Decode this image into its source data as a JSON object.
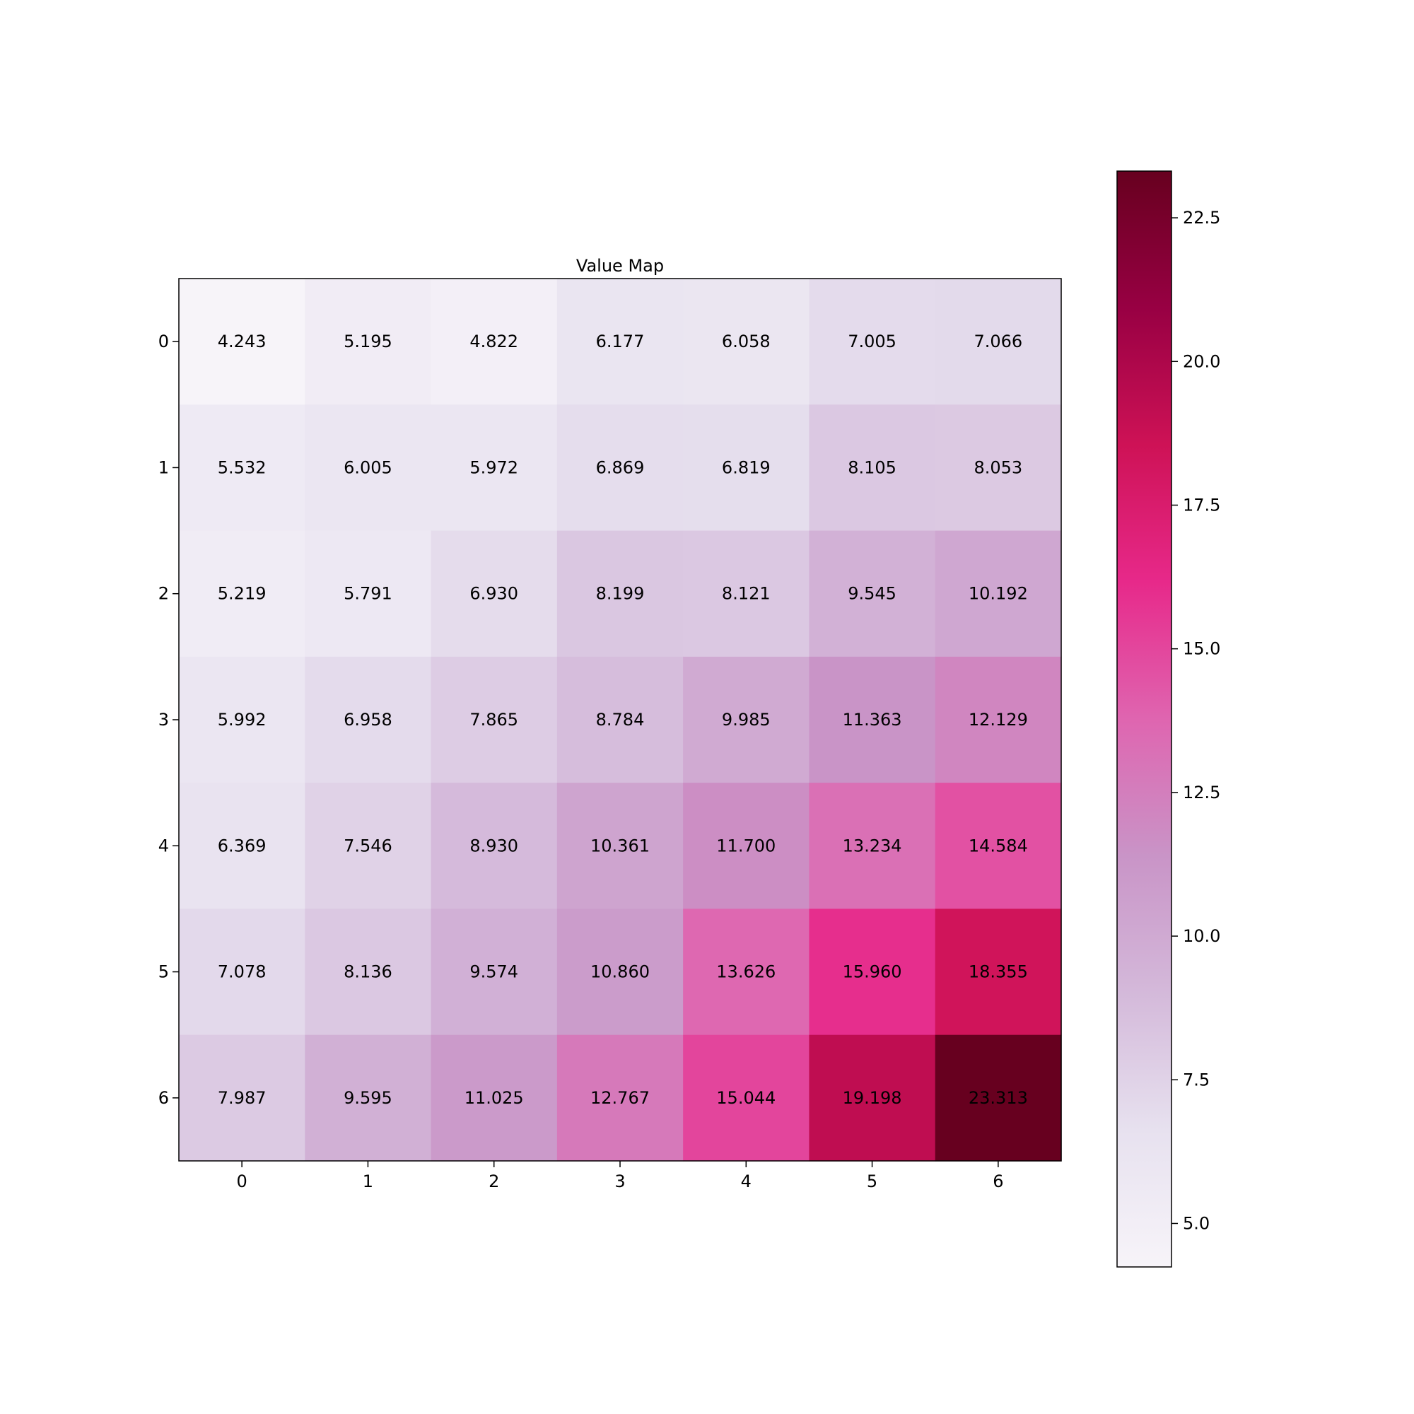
{
  "chart_data": {
    "type": "heatmap",
    "title": "Value Map",
    "x_ticks": [
      "0",
      "1",
      "2",
      "3",
      "4",
      "5",
      "6"
    ],
    "y_ticks": [
      "0",
      "1",
      "2",
      "3",
      "4",
      "5",
      "6"
    ],
    "values": [
      [
        4.243,
        5.195,
        4.822,
        6.177,
        6.058,
        7.005,
        7.066
      ],
      [
        5.532,
        6.005,
        5.972,
        6.869,
        6.819,
        8.105,
        8.053
      ],
      [
        5.219,
        5.791,
        6.93,
        8.199,
        8.121,
        9.545,
        10.192
      ],
      [
        5.992,
        6.958,
        7.865,
        8.784,
        9.985,
        11.363,
        12.129
      ],
      [
        6.369,
        7.546,
        8.93,
        10.361,
        11.7,
        13.234,
        14.584
      ],
      [
        7.078,
        8.136,
        9.574,
        10.86,
        13.626,
        15.96,
        18.355
      ],
      [
        7.987,
        9.595,
        11.025,
        12.767,
        15.044,
        19.198,
        23.313
      ]
    ],
    "cell_labels": [
      [
        "4.243",
        "5.195",
        "4.822",
        "6.177",
        "6.058",
        "7.005",
        "7.066"
      ],
      [
        "5.532",
        "6.005",
        "5.972",
        "6.869",
        "6.819",
        "8.105",
        "8.053"
      ],
      [
        "5.219",
        "5.791",
        "6.930",
        "8.199",
        "8.121",
        "9.545",
        "10.192"
      ],
      [
        "5.992",
        "6.958",
        "7.865",
        "8.784",
        "9.985",
        "11.363",
        "12.129"
      ],
      [
        "6.369",
        "7.546",
        "8.930",
        "10.361",
        "11.700",
        "13.234",
        "14.584"
      ],
      [
        "7.078",
        "8.136",
        "9.574",
        "10.860",
        "13.626",
        "15.960",
        "18.355"
      ],
      [
        "7.987",
        "9.595",
        "11.025",
        "12.767",
        "15.044",
        "19.198",
        "23.313"
      ]
    ],
    "colormap": "PuRd",
    "colormap_stops": [
      "#f7f4f9",
      "#e7e1ef",
      "#d4b9da",
      "#c994c7",
      "#df65b0",
      "#e7298a",
      "#ce1256",
      "#980043",
      "#67001f"
    ],
    "colorbar": {
      "range": [
        4.243,
        23.313
      ],
      "ticks": [
        5.0,
        7.5,
        10.0,
        12.5,
        15.0,
        17.5,
        20.0,
        22.5
      ],
      "tick_labels": [
        "5.0",
        "7.5",
        "10.0",
        "12.5",
        "15.0",
        "17.5",
        "20.0",
        "22.5"
      ]
    }
  }
}
